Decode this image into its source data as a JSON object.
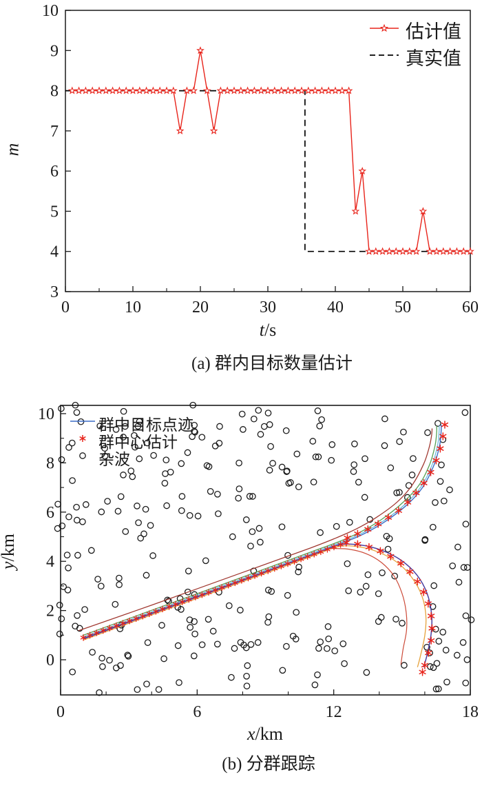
{
  "page": {
    "background": "#ffffff",
    "text_color": "#1a1a1a"
  },
  "figure_a": {
    "caption": "(a) 群内目标数量估计",
    "x_axis": {
      "label_var": "t",
      "label_unit": "/s",
      "range": [
        0,
        60
      ],
      "ticks": [
        0,
        10,
        20,
        30,
        40,
        50,
        60
      ],
      "minor_step": 5
    },
    "y_axis": {
      "label_var": "m",
      "label_unit": "",
      "range": [
        3,
        10
      ],
      "ticks": [
        3,
        4,
        5,
        6,
        7,
        8,
        9,
        10
      ]
    },
    "legend": [
      {
        "label": "估计值",
        "marker": "line-star",
        "color": "#e8231a"
      },
      {
        "label": "真实值",
        "marker": "dashed-line",
        "color": "#000000"
      }
    ]
  },
  "figure_b": {
    "caption": "(b) 分群跟踪",
    "x_axis": {
      "label_var": "x",
      "label_unit": "/km",
      "range": [
        0,
        18
      ],
      "ticks": [
        0,
        6,
        12,
        18
      ],
      "minor_step": 2
    },
    "y_axis": {
      "label_var": "y",
      "label_unit": "/km",
      "range": [
        0,
        10
      ],
      "ticks": [
        0,
        2,
        4,
        6,
        8,
        10
      ],
      "minor_step": 1
    },
    "legend": [
      {
        "label": "群中目标点迹",
        "marker": "line",
        "color": "#3a6cc6"
      },
      {
        "label": "群中心估计",
        "marker": "asterisk",
        "color": "#e8231a"
      },
      {
        "label": "杂波",
        "marker": "circle",
        "color": "#1a1a1a"
      }
    ]
  },
  "chart_data": [
    {
      "type": "line",
      "title": "(a) 群内目标数量估计",
      "xlabel": "t/s",
      "ylabel": "m",
      "xlim": [
        0,
        60
      ],
      "ylim": [
        3,
        10
      ],
      "xticks": [
        0,
        10,
        20,
        30,
        40,
        50,
        60
      ],
      "yticks": [
        3,
        4,
        5,
        6,
        7,
        8,
        9,
        10
      ],
      "grid": false,
      "legend_position": "top-right",
      "series": [
        {
          "name": "估计值",
          "color": "#e8231a",
          "marker": "star",
          "line": "solid",
          "t_start": 1,
          "t_step": 1,
          "values": [
            8,
            8,
            8,
            8,
            8,
            8,
            8,
            8,
            8,
            8,
            8,
            8,
            8,
            8,
            8,
            8,
            7,
            8,
            8,
            9,
            8,
            7,
            8,
            8,
            8,
            8,
            8,
            8,
            8,
            8,
            8,
            8,
            8,
            8,
            8,
            8,
            8,
            8,
            8,
            8,
            8,
            8,
            5,
            6,
            4,
            4,
            4,
            4,
            4,
            4,
            4,
            4,
            5,
            4,
            4,
            4,
            4,
            4,
            4,
            4
          ]
        },
        {
          "name": "真实值",
          "color": "#000000",
          "marker": "none",
          "line": "dashed",
          "points": [
            [
              0,
              8
            ],
            [
              35.5,
              8
            ],
            [
              35.5,
              4
            ],
            [
              60,
              4
            ]
          ]
        }
      ]
    },
    {
      "type": "scatter",
      "title": "(b) 分群跟踪",
      "xlabel": "x/km",
      "ylabel": "y/km",
      "xlim": [
        0,
        18
      ],
      "ylim": [
        0,
        10
      ],
      "xticks": [
        0,
        6,
        12,
        18
      ],
      "yticks": [
        0,
        2,
        4,
        6,
        8,
        10
      ],
      "grid": false,
      "legend_position": "top-left",
      "tracks": [
        {
          "name": "group1-track-blue",
          "color": "#3a6cc6",
          "width": 1.4,
          "points": [
            [
              1.0,
              0.88
            ],
            [
              4,
              1.9
            ],
            [
              8,
              3.25
            ],
            [
              11,
              4.27
            ],
            [
              12.2,
              4.68
            ],
            [
              13.2,
              5.06
            ],
            [
              14.2,
              5.58
            ],
            [
              15.2,
              6.28
            ],
            [
              15.9,
              7.0
            ],
            [
              16.4,
              7.9
            ],
            [
              16.65,
              8.7
            ],
            [
              16.72,
              9.3
            ],
            [
              16.72,
              9.55
            ]
          ]
        },
        {
          "name": "group1-track-cyan",
          "color": "#62b8dd",
          "width": 1.2,
          "points": [
            [
              1.0,
              0.93
            ],
            [
              4,
              1.95
            ],
            [
              8,
              3.3
            ],
            [
              11,
              4.32
            ],
            [
              12.2,
              4.73
            ],
            [
              13.2,
              5.12
            ],
            [
              14.2,
              5.65
            ],
            [
              15.15,
              6.33
            ],
            [
              15.85,
              7.05
            ],
            [
              16.32,
              7.92
            ],
            [
              16.56,
              8.7
            ],
            [
              16.63,
              9.28
            ],
            [
              16.63,
              9.52
            ]
          ]
        },
        {
          "name": "group1-track-green",
          "color": "#55a055",
          "width": 1.3,
          "points": [
            [
              0.95,
              0.98
            ],
            [
              4,
              2.01
            ],
            [
              8,
              3.36
            ],
            [
              11,
              4.38
            ],
            [
              12.2,
              4.79
            ],
            [
              13.15,
              5.18
            ],
            [
              14.1,
              5.7
            ],
            [
              15.05,
              6.4
            ],
            [
              15.75,
              7.1
            ],
            [
              16.22,
              7.95
            ],
            [
              16.45,
              8.7
            ],
            [
              16.52,
              9.22
            ],
            [
              16.52,
              9.5
            ]
          ]
        },
        {
          "name": "group1-track-maroon",
          "color": "#a03830",
          "width": 1.3,
          "points": [
            [
              0.78,
              1.18
            ],
            [
              4,
              2.22
            ],
            [
              8,
              3.55
            ],
            [
              11,
              4.55
            ],
            [
              12.1,
              4.95
            ],
            [
              13.0,
              5.32
            ],
            [
              13.9,
              5.8
            ],
            [
              14.8,
              6.42
            ],
            [
              15.45,
              7.1
            ],
            [
              15.95,
              7.95
            ],
            [
              16.2,
              8.65
            ],
            [
              16.3,
              9.12
            ],
            [
              16.32,
              9.4
            ]
          ]
        },
        {
          "name": "group2-track-purple",
          "color": "#4a3f9f",
          "width": 1.5,
          "points": [
            [
              1.0,
              0.85
            ],
            [
              4,
              1.87
            ],
            [
              8,
              3.22
            ],
            [
              11,
              4.24
            ],
            [
              12.2,
              4.66
            ],
            [
              13.2,
              4.66
            ],
            [
              14.1,
              4.45
            ],
            [
              14.95,
              4.05
            ],
            [
              15.65,
              3.45
            ],
            [
              16.1,
              2.7
            ],
            [
              16.3,
              1.85
            ],
            [
              16.28,
              1.05
            ],
            [
              16.1,
              0.2
            ],
            [
              15.95,
              -0.3
            ]
          ]
        },
        {
          "name": "group2-track-orange",
          "color": "#e6a23c",
          "width": 1.3,
          "points": [
            [
              1.0,
              0.8
            ],
            [
              4,
              1.82
            ],
            [
              8,
              3.17
            ],
            [
              11,
              4.19
            ],
            [
              12.2,
              4.6
            ],
            [
              13.15,
              4.58
            ],
            [
              14.0,
              4.36
            ],
            [
              14.8,
              3.95
            ],
            [
              15.45,
              3.32
            ],
            [
              15.88,
              2.58
            ],
            [
              16.05,
              1.78
            ],
            [
              16.0,
              0.98
            ],
            [
              15.8,
              0.12
            ],
            [
              15.68,
              -0.3
            ]
          ]
        },
        {
          "name": "group2-track-red",
          "color": "#cc4a38",
          "width": 1.2,
          "points": [
            [
              11.8,
              4.52
            ],
            [
              12.6,
              4.5
            ],
            [
              13.4,
              4.32
            ],
            [
              14.1,
              3.95
            ],
            [
              14.65,
              3.4
            ],
            [
              15.0,
              2.7
            ],
            [
              15.18,
              1.95
            ],
            [
              15.2,
              1.2
            ],
            [
              15.05,
              0.45
            ],
            [
              14.95,
              -0.2
            ]
          ]
        }
      ],
      "center_estimates": {
        "name": "群中心估计",
        "color": "#e8231a",
        "marker": "asterisk",
        "diagonal_chain": {
          "from": [
            1.0,
            0.9
          ],
          "to": [
            12.3,
            4.68
          ],
          "count": 40
        },
        "upper_chain": [
          [
            12.6,
            4.95
          ],
          [
            13.05,
            5.12
          ],
          [
            13.5,
            5.3
          ],
          [
            13.95,
            5.52
          ],
          [
            14.4,
            5.78
          ],
          [
            14.85,
            6.06
          ],
          [
            15.25,
            6.4
          ],
          [
            15.62,
            6.78
          ],
          [
            15.96,
            7.18
          ],
          [
            16.26,
            7.62
          ],
          [
            16.5,
            8.1
          ],
          [
            16.68,
            8.58
          ],
          [
            16.8,
            9.08
          ],
          [
            16.88,
            9.55
          ]
        ],
        "lower_chain": [
          [
            12.55,
            4.76
          ],
          [
            13.05,
            4.7
          ],
          [
            13.55,
            4.58
          ],
          [
            14.05,
            4.42
          ],
          [
            14.5,
            4.2
          ],
          [
            14.95,
            3.92
          ],
          [
            15.35,
            3.58
          ],
          [
            15.68,
            3.18
          ],
          [
            15.95,
            2.75
          ],
          [
            16.15,
            2.28
          ],
          [
            16.28,
            1.78
          ],
          [
            16.32,
            1.28
          ],
          [
            16.28,
            0.78
          ],
          [
            16.16,
            0.28
          ],
          [
            16.0,
            -0.22
          ],
          [
            15.9,
            -0.5
          ]
        ]
      },
      "clutter": {
        "name": "杂波",
        "marker": "circle",
        "color": "#1a1a1a",
        "count": 280,
        "seed": 777,
        "x_range": [
          -0.15,
          18.15
        ],
        "y_range": [
          -1.35,
          10.35
        ]
      }
    }
  ]
}
